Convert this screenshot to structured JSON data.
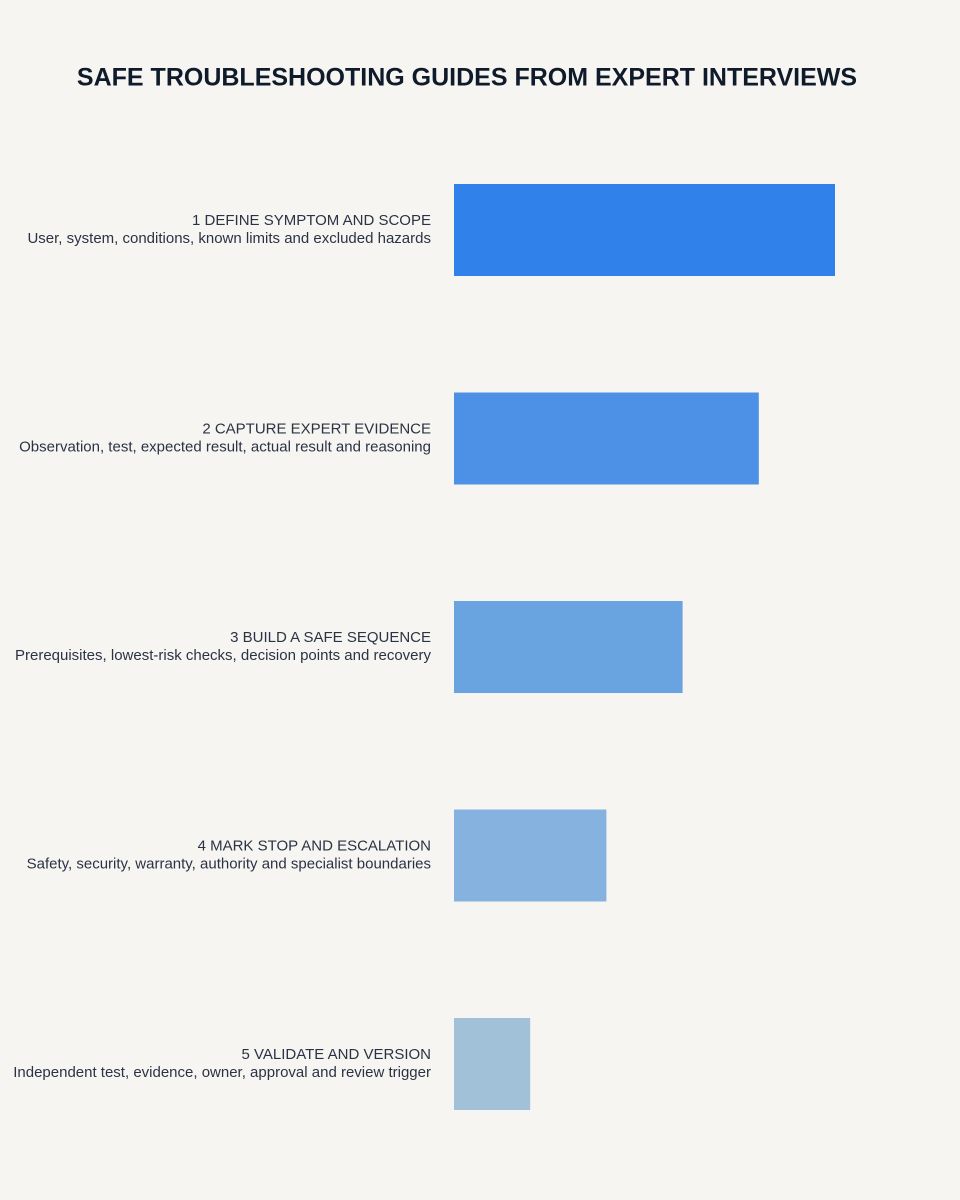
{
  "chart_data": {
    "type": "bar",
    "orientation": "horizontal",
    "title": "SAFE TROUBLESHOOTING GUIDES FROM EXPERT INTERVIEWS",
    "categories": [
      "1 DEFINE SYMPTOM AND SCOPE",
      "2 CAPTURE EXPERT EVIDENCE",
      "3 BUILD A SAFE SEQUENCE",
      "4 MARK STOP AND ESCALATION",
      "5 VALIDATE AND VERSION"
    ],
    "descriptions": [
      "User, system, conditions, known limits and excluded hazards",
      "Observation, test, expected result, actual result and reasoning",
      "Prerequisites, lowest-risk checks, decision points and recovery",
      "Safety, security, warranty, authority and specialist boundaries",
      "Independent test, evidence, owner, approval and review trigger"
    ],
    "values": [
      100,
      80,
      60,
      40,
      20
    ],
    "colors": [
      "#3181ea",
      "#4d91e6",
      "#69a3e0",
      "#86b2df",
      "#a0c1d7"
    ]
  }
}
